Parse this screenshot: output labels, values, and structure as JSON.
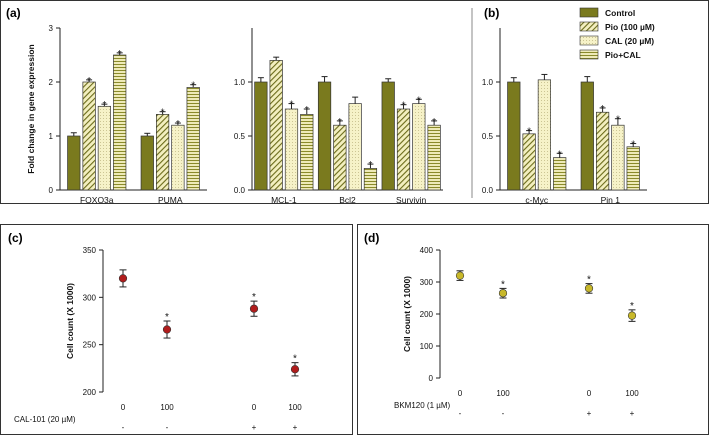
{
  "labels": {
    "a": "(a)",
    "b": "(b)",
    "c": "(c)",
    "d": "(d)"
  },
  "legend": {
    "items": [
      {
        "name": "Control",
        "pattern": "control"
      },
      {
        "name": "Pio (100 µM)",
        "pattern": "pio"
      },
      {
        "name": "CAL (20 µM)",
        "pattern": "cal"
      },
      {
        "name": "Pio+CAL",
        "pattern": "piocal"
      }
    ]
  },
  "colors": {
    "olive": "#7a7a1e",
    "light": "#f3efbf",
    "axis": "#222222",
    "marker_c": "#b01c1c",
    "marker_d": "#c8b82a"
  },
  "chart_data": [
    {
      "id": "a1",
      "type": "bar",
      "ylabel": "Fold change in gene expression",
      "ylim": [
        0,
        3
      ],
      "yticks": [
        "0",
        "1",
        "2",
        "3"
      ],
      "categories": [
        "FOXO3a",
        "PUMA"
      ],
      "series": [
        {
          "name": "Control",
          "values": [
            1.0,
            1.0
          ],
          "errors": [
            0.06,
            0.05
          ],
          "star": [
            false,
            false
          ]
        },
        {
          "name": "Pio (100 µM)",
          "values": [
            2.0,
            1.4
          ],
          "errors": [
            0.04,
            0.05
          ],
          "star": [
            true,
            true
          ]
        },
        {
          "name": "CAL (20 µM)",
          "values": [
            1.55,
            1.2
          ],
          "errors": [
            0.04,
            0.04
          ],
          "star": [
            true,
            true
          ]
        },
        {
          "name": "Pio+CAL",
          "values": [
            2.5,
            1.9
          ],
          "errors": [
            0.04,
            0.05
          ],
          "star": [
            true,
            true
          ]
        }
      ]
    },
    {
      "id": "a2",
      "type": "bar",
      "ylim": [
        0,
        1.5
      ],
      "yticks": [
        "0.0",
        "0.5",
        "1.0"
      ],
      "categories": [
        "MCL-1",
        "Bcl2",
        "Survivin"
      ],
      "series": [
        {
          "name": "Control",
          "values": [
            1.0,
            1.0,
            1.0
          ],
          "errors": [
            0.04,
            0.05,
            0.03
          ],
          "star": [
            false,
            false,
            false
          ]
        },
        {
          "name": "Pio (100 µM)",
          "values": [
            1.2,
            0.6,
            0.75
          ],
          "errors": [
            0.03,
            0.04,
            0.04
          ],
          "star": [
            false,
            true,
            true
          ]
        },
        {
          "name": "CAL (20 µM)",
          "values": [
            0.75,
            0.8,
            0.8
          ],
          "errors": [
            0.05,
            0.06,
            0.04
          ],
          "star": [
            true,
            false,
            true
          ]
        },
        {
          "name": "Pio+CAL",
          "values": [
            0.7,
            0.2,
            0.6
          ],
          "errors": [
            0.05,
            0.04,
            0.04
          ],
          "star": [
            true,
            true,
            true
          ]
        }
      ]
    },
    {
      "id": "b",
      "type": "bar",
      "ylim": [
        0,
        1.5
      ],
      "yticks": [
        "0.0",
        "0.5",
        "1.0"
      ],
      "categories": [
        "c-Myc",
        "Pin 1"
      ],
      "series": [
        {
          "name": "Control",
          "values": [
            1.0,
            1.0
          ],
          "errors": [
            0.04,
            0.05
          ],
          "star": [
            false,
            false
          ]
        },
        {
          "name": "Pio (100 µM)",
          "values": [
            0.52,
            0.72
          ],
          "errors": [
            0.03,
            0.04
          ],
          "star": [
            true,
            true
          ]
        },
        {
          "name": "CAL (20 µM)",
          "values": [
            1.02,
            0.6
          ],
          "errors": [
            0.05,
            0.06
          ],
          "star": [
            false,
            true
          ]
        },
        {
          "name": "Pio+CAL",
          "values": [
            0.3,
            0.4
          ],
          "errors": [
            0.04,
            0.03
          ],
          "star": [
            true,
            true
          ]
        }
      ]
    },
    {
      "id": "c",
      "type": "scatter",
      "ylabel": "Cell count (X 1000)",
      "ylim": [
        200,
        350
      ],
      "yticks": [
        "200",
        "250",
        "300",
        "350"
      ],
      "x_ticks": [
        "0",
        "100",
        "0",
        "100"
      ],
      "treatment_label": "CAL-101 (20 µM)",
      "treatment_marks": [
        "-",
        "-",
        "+",
        "+"
      ],
      "values": [
        320,
        266,
        288,
        224
      ],
      "errors": [
        9,
        9,
        8,
        7
      ],
      "star": [
        false,
        true,
        true,
        true
      ]
    },
    {
      "id": "d",
      "type": "scatter",
      "ylabel": "Cell count (X 1000)",
      "ylim": [
        0,
        400
      ],
      "yticks": [
        "0",
        "100",
        "200",
        "300",
        "400"
      ],
      "x_ticks": [
        "0",
        "100",
        "0",
        "100"
      ],
      "treatment_label": "BKM120 (1 µM)",
      "treatment_marks": [
        "-",
        "-",
        "+",
        "+"
      ],
      "values": [
        320,
        265,
        280,
        195
      ],
      "errors": [
        15,
        15,
        15,
        18
      ],
      "star": [
        false,
        true,
        true,
        true
      ]
    }
  ]
}
